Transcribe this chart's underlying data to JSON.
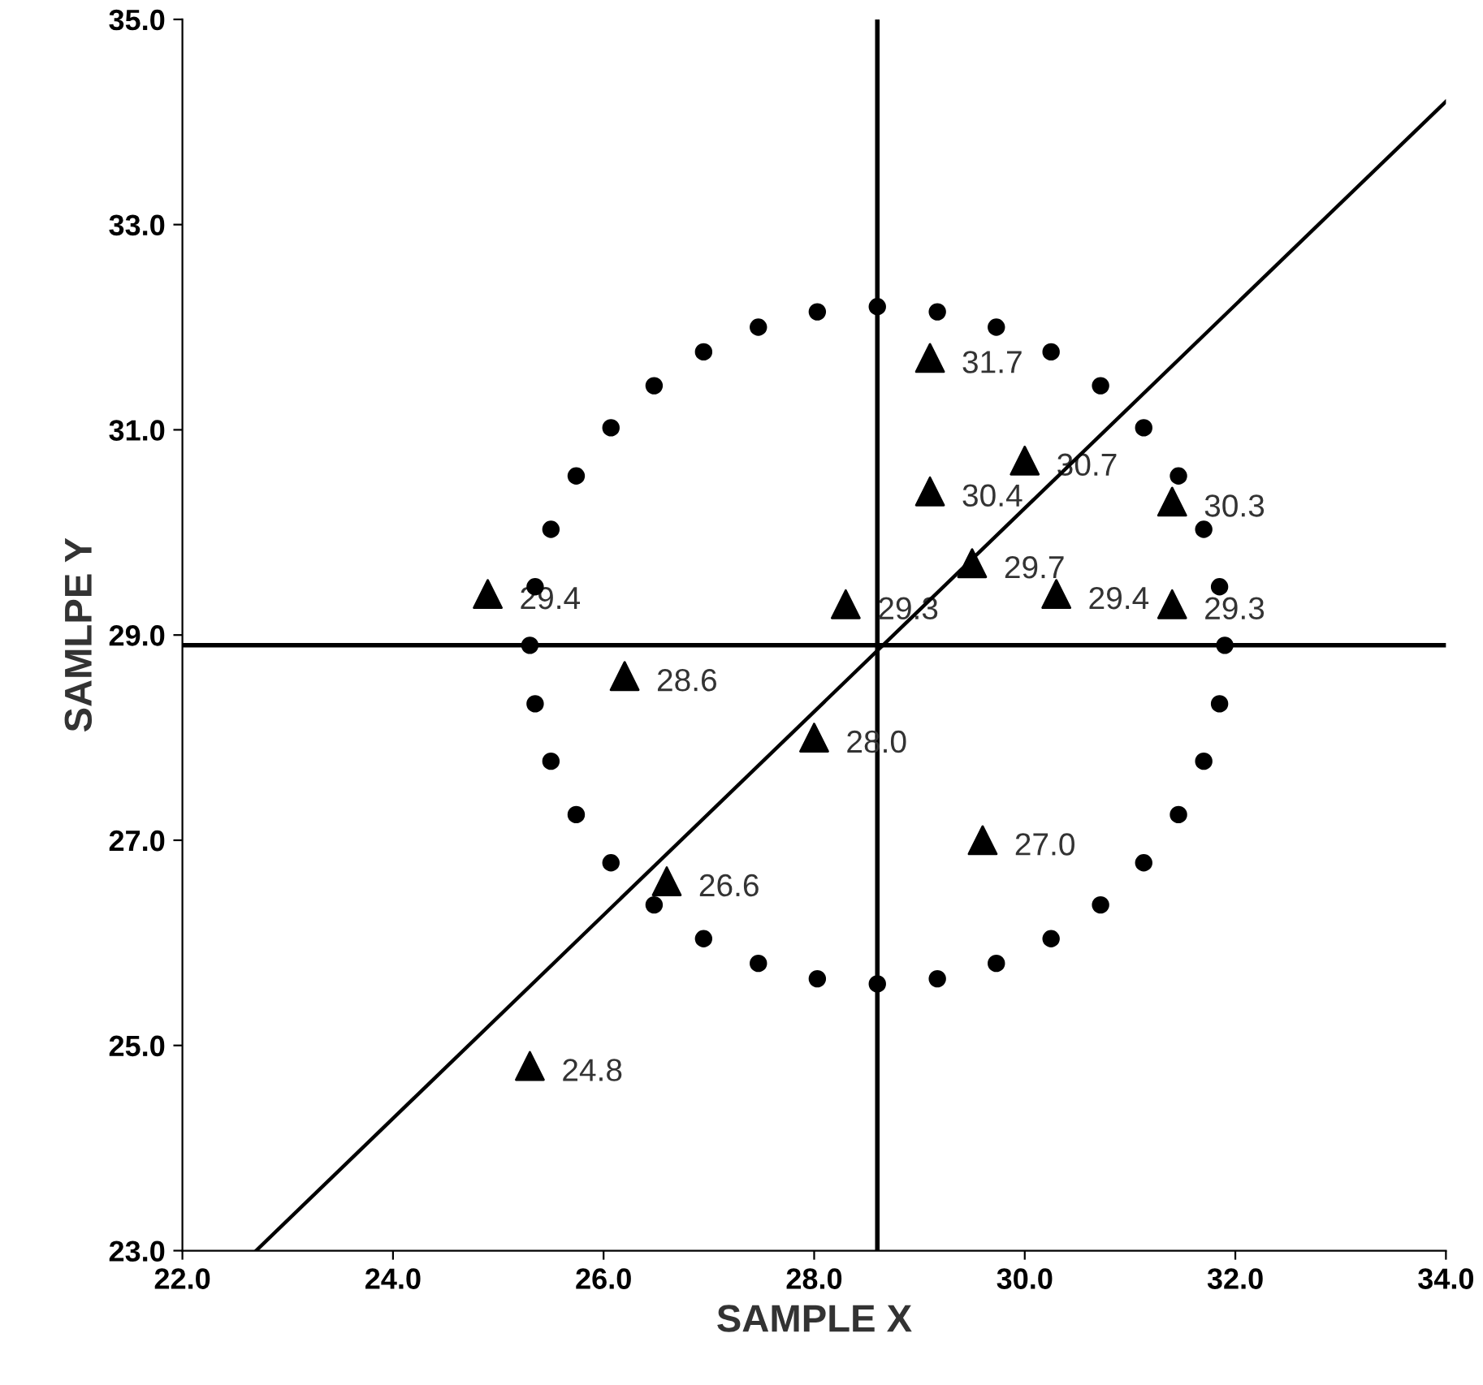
{
  "chart_data": {
    "type": "scatter",
    "xlabel": "SAMPLE X",
    "ylabel": "SAMLPE Y",
    "xlim": [
      22,
      34
    ],
    "ylim": [
      23,
      35
    ],
    "xticks": [
      {
        "value": 22,
        "label": "22.0"
      },
      {
        "value": 24,
        "label": "24.0"
      },
      {
        "value": 26,
        "label": "26.0"
      },
      {
        "value": 28,
        "label": "28.0"
      },
      {
        "value": 30,
        "label": "30.0"
      },
      {
        "value": 32,
        "label": "32.0"
      },
      {
        "value": 34,
        "label": "34.0"
      }
    ],
    "yticks": [
      {
        "value": 23,
        "label": "23.0"
      },
      {
        "value": 25,
        "label": "25.0"
      },
      {
        "value": 27,
        "label": "27.0"
      },
      {
        "value": 29,
        "label": "29.0"
      },
      {
        "value": 31,
        "label": "31.0"
      },
      {
        "value": 33,
        "label": "33.0"
      },
      {
        "value": 35,
        "label": "35.0"
      }
    ],
    "grid": false,
    "legend": false,
    "ref_lines": [
      {
        "axis": "x",
        "value": 28.6,
        "color": "#000000"
      },
      {
        "axis": "y",
        "value": 28.9,
        "color": "#000000"
      }
    ],
    "series": [
      {
        "type": "scatter",
        "color": "#000000",
        "marker": "triangle",
        "value_labels": [
          "29.4",
          "28.6",
          "26.6",
          "24.8",
          "29.3",
          "28.0",
          "31.7",
          "30.4",
          "30.7",
          "29.7",
          "29.4",
          "30.3",
          "29.3",
          "27.0"
        ],
        "x": [
          24.9,
          26.2,
          26.6,
          25.3,
          28.3,
          28.0,
          29.1,
          29.1,
          30.0,
          29.5,
          30.3,
          31.4,
          31.4,
          29.6
        ],
        "values": [
          29.4,
          28.6,
          26.6,
          24.8,
          29.3,
          28.0,
          31.7,
          30.4,
          30.7,
          29.7,
          29.4,
          30.3,
          29.3,
          27.0
        ]
      },
      {
        "color": "#000000",
        "marker": "circle",
        "x": [
          31.9,
          31.85,
          31.7,
          31.46,
          31.13,
          30.72,
          30.25,
          29.73,
          29.17,
          28.6,
          28.03,
          27.47,
          26.95,
          26.48,
          26.07,
          25.74,
          25.5,
          25.35,
          25.3,
          25.35,
          25.5,
          25.74,
          26.07,
          26.48,
          26.95,
          27.47,
          28.03,
          28.6,
          29.17,
          29.73,
          30.25,
          30.72,
          31.13,
          31.46,
          31.7,
          31.85
        ],
        "values": [
          28.9,
          29.47,
          30.03,
          30.55,
          31.02,
          31.43,
          31.76,
          32.0,
          32.15,
          32.2,
          32.15,
          32.0,
          31.76,
          31.43,
          31.02,
          30.55,
          30.03,
          29.47,
          28.9,
          28.33,
          27.77,
          27.25,
          26.78,
          26.37,
          26.04,
          25.8,
          25.65,
          25.6,
          25.65,
          25.8,
          26.04,
          26.37,
          26.78,
          27.25,
          27.77,
          28.33
        ]
      },
      {
        "type": "line",
        "color": "#000000",
        "line_style": "solid",
        "x": [
          22.7,
          34.0
        ],
        "values": [
          23.0,
          34.2
        ]
      }
    ]
  }
}
